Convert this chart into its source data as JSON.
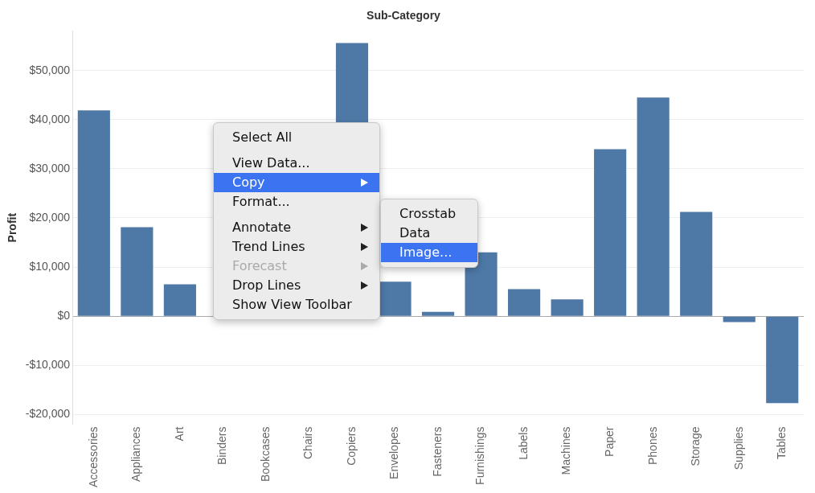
{
  "chart_data": {
    "type": "bar",
    "title": "Sub-Category",
    "ylabel": "Profit",
    "categories": [
      "Accessories",
      "Appliances",
      "Art",
      "Binders",
      "Bookcases",
      "Chairs",
      "Copiers",
      "Envelopes",
      "Fasteners",
      "Furnishings",
      "Labels",
      "Machines",
      "Paper",
      "Phones",
      "Storage",
      "Supplies",
      "Tables"
    ],
    "values": [
      41900,
      18100,
      6500,
      null,
      null,
      null,
      55600,
      7000,
      900,
      13000,
      5500,
      3400,
      34000,
      44500,
      21200,
      -1200,
      -17700
    ],
    "color": "#4e79a7",
    "ylim": [
      -22000,
      58000
    ],
    "yticks": [
      {
        "value": -20000,
        "label": "-$20,000"
      },
      {
        "value": -10000,
        "label": "-$10,000"
      },
      {
        "value": 0,
        "label": "$0"
      },
      {
        "value": 10000,
        "label": "$10,000"
      },
      {
        "value": 20000,
        "label": "$20,000"
      },
      {
        "value": 30000,
        "label": "$30,000"
      },
      {
        "value": 40000,
        "label": "$40,000"
      },
      {
        "value": 50000,
        "label": "$50,000"
      }
    ],
    "grid": "y",
    "annotations": [
      "Select All",
      "View Data...",
      "Copy",
      "Format...",
      "Annotate",
      "Trend Lines",
      "Forecast",
      "Drop Lines",
      "Show View Toolbar",
      "Crosstab",
      "Data",
      "Image..."
    ]
  }
}
